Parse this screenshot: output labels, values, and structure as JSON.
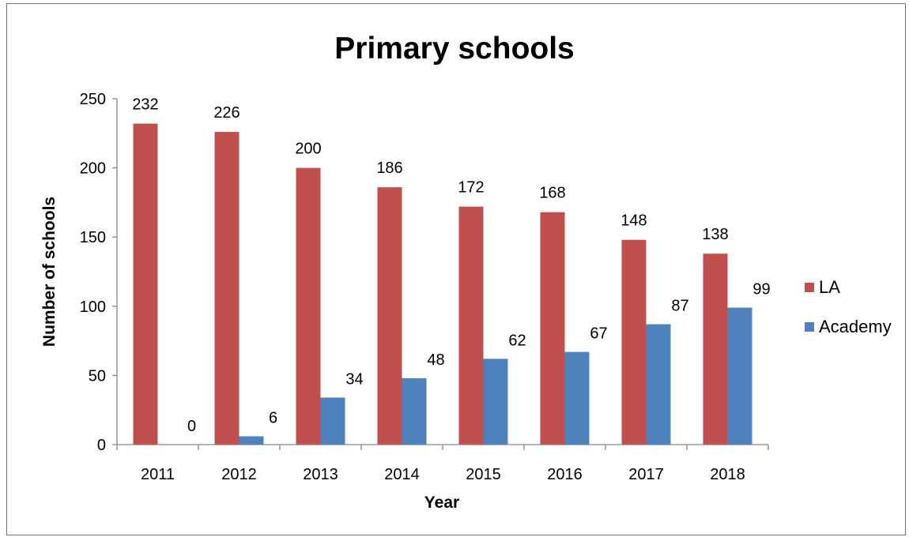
{
  "chart_data": {
    "type": "bar",
    "title": "Primary schools",
    "xlabel": "Year",
    "ylabel": "Number of schools",
    "categories": [
      "2011",
      "2012",
      "2013",
      "2014",
      "2015",
      "2016",
      "2017",
      "2018"
    ],
    "series": [
      {
        "name": "LA",
        "color": "#c0504d",
        "values": [
          232,
          226,
          200,
          186,
          172,
          168,
          148,
          138
        ]
      },
      {
        "name": "Academy",
        "color": "#4f81bd",
        "values": [
          0,
          6,
          34,
          48,
          62,
          67,
          87,
          99
        ]
      }
    ],
    "ylim": [
      0,
      250
    ],
    "yticks": [
      0,
      50,
      100,
      150,
      200,
      250
    ],
    "grid": false,
    "legend": "right",
    "data_labels": true
  }
}
